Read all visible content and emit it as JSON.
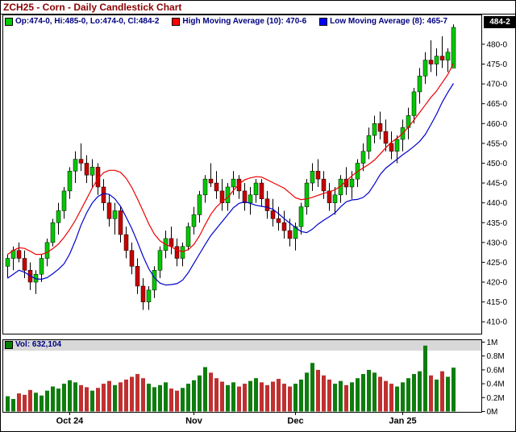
{
  "header": {
    "title": "ZCH25 - Corn - Daily Candlestick Chart"
  },
  "legend": {
    "ohlc": {
      "label": "Op:474-0, Hi:485-0, Lo:474-0, Cl:484-2",
      "swatch": "#00cc00"
    },
    "high_ma": {
      "label": "High Moving Average (10): 470-6",
      "swatch": "#ff0000"
    },
    "low_ma": {
      "label": "Low Moving Average (8): 465-7",
      "swatch": "#0000ff"
    },
    "last_price_badge": "484-2"
  },
  "volume_legend": {
    "label": "Vol: 632,104",
    "swatch": "#008000"
  },
  "chart_data": {
    "type": "candlestick",
    "title": "ZCH25 - Corn - Daily Candlestick Chart",
    "symbol": "ZCH25",
    "timeframe": "Daily",
    "legend_position": "top",
    "grid": false,
    "price_axis_side": "right",
    "ma_high_period": 10,
    "ma_low_period": 8,
    "ma_high_current": "470-6",
    "ma_low_current": "465-7",
    "last_close_label": "484-2",
    "last_volume": 632104,
    "price_ticks": [
      {
        "value": 480,
        "label": "480-0"
      },
      {
        "value": 475,
        "label": "475-0"
      },
      {
        "value": 470,
        "label": "470-0"
      },
      {
        "value": 465,
        "label": "465-0"
      },
      {
        "value": 460,
        "label": "460-0"
      },
      {
        "value": 455,
        "label": "455-0"
      },
      {
        "value": 450,
        "label": "450-0"
      },
      {
        "value": 445,
        "label": "445-0"
      },
      {
        "value": 440,
        "label": "440-0"
      },
      {
        "value": 435,
        "label": "435-0"
      },
      {
        "value": 430,
        "label": "430-0"
      },
      {
        "value": 425,
        "label": "425-0"
      },
      {
        "value": 420,
        "label": "420-0"
      },
      {
        "value": 415,
        "label": "415-0"
      },
      {
        "value": 410,
        "label": "410-0"
      }
    ],
    "volume_ticks": [
      {
        "value": 1000000,
        "label": "1M"
      },
      {
        "value": 800000,
        "label": "0.8M"
      },
      {
        "value": 600000,
        "label": "0.6M"
      },
      {
        "value": 400000,
        "label": "0.4M"
      },
      {
        "value": 200000,
        "label": "0.2M"
      },
      {
        "value": 0,
        "label": "0M"
      }
    ],
    "x_labels": [
      {
        "label": "Oct 24",
        "index": 11
      },
      {
        "label": "Nov",
        "index": 33
      },
      {
        "label": "Dec",
        "index": 51
      },
      {
        "label": "Jan 25",
        "index": 70
      }
    ],
    "colors": {
      "up": "#00c800",
      "down": "#c80000",
      "ma_high": "#ee0000",
      "ma_low": "#0000cc",
      "vol_up": "#0e7d0e",
      "vol_down": "#c03030",
      "volume_band": "#d8d8d8",
      "axis_text": "#000000"
    },
    "candles": [
      [
        424,
        427,
        421,
        426,
        220000
      ],
      [
        426,
        429,
        423,
        428,
        180000
      ],
      [
        428,
        430,
        425,
        426,
        260000
      ],
      [
        426,
        428,
        421,
        423,
        240000
      ],
      [
        423,
        425,
        418,
        420,
        310000
      ],
      [
        420,
        423,
        417,
        422,
        270000
      ],
      [
        422,
        427,
        420,
        426,
        230000
      ],
      [
        426,
        431,
        424,
        430,
        300000
      ],
      [
        430,
        436,
        429,
        435,
        360000
      ],
      [
        435,
        440,
        432,
        438,
        330000
      ],
      [
        438,
        444,
        436,
        443,
        400000
      ],
      [
        443,
        449,
        441,
        448,
        450000
      ],
      [
        448,
        453,
        445,
        451,
        420000
      ],
      [
        451,
        455,
        448,
        450,
        380000
      ],
      [
        450,
        452,
        445,
        447,
        350000
      ],
      [
        447,
        451,
        444,
        449,
        300000
      ],
      [
        449,
        450,
        442,
        444,
        340000
      ],
      [
        444,
        446,
        438,
        440,
        400000
      ],
      [
        440,
        442,
        434,
        436,
        440000
      ],
      [
        436,
        440,
        432,
        438,
        380000
      ],
      [
        438,
        439,
        430,
        432,
        420000
      ],
      [
        432,
        434,
        426,
        428,
        460000
      ],
      [
        428,
        430,
        422,
        424,
        500000
      ],
      [
        424,
        426,
        417,
        419,
        540000
      ],
      [
        419,
        421,
        413,
        415,
        480000
      ],
      [
        415,
        419,
        413,
        418,
        400000
      ],
      [
        418,
        424,
        416,
        423,
        350000
      ],
      [
        423,
        429,
        421,
        428,
        380000
      ],
      [
        428,
        433,
        426,
        431,
        420000
      ],
      [
        431,
        434,
        427,
        429,
        330000
      ],
      [
        429,
        431,
        424,
        426,
        300000
      ],
      [
        426,
        430,
        424,
        429,
        340000
      ],
      [
        429,
        435,
        428,
        434,
        400000
      ],
      [
        434,
        439,
        432,
        437,
        450000
      ],
      [
        437,
        443,
        435,
        442,
        520000
      ],
      [
        442,
        447,
        440,
        446,
        640000
      ],
      [
        446,
        450,
        444,
        445,
        560000
      ],
      [
        445,
        448,
        441,
        443,
        480000
      ],
      [
        443,
        446,
        438,
        440,
        430000
      ],
      [
        440,
        445,
        438,
        444,
        380000
      ],
      [
        444,
        448,
        442,
        446,
        420000
      ],
      [
        446,
        447,
        441,
        443,
        360000
      ],
      [
        443,
        445,
        438,
        440,
        400000
      ],
      [
        440,
        444,
        437,
        442,
        440000
      ],
      [
        442,
        446,
        440,
        445,
        480000
      ],
      [
        445,
        446,
        439,
        441,
        420000
      ],
      [
        441,
        443,
        436,
        438,
        380000
      ],
      [
        438,
        441,
        434,
        436,
        430000
      ],
      [
        436,
        439,
        433,
        435,
        470000
      ],
      [
        435,
        438,
        431,
        433,
        400000
      ],
      [
        433,
        436,
        429,
        431,
        360000
      ],
      [
        431,
        435,
        428,
        434,
        400000
      ],
      [
        434,
        440,
        432,
        439,
        460000
      ],
      [
        439,
        446,
        437,
        445,
        560000
      ],
      [
        445,
        450,
        443,
        448,
        700000
      ],
      [
        448,
        451,
        444,
        446,
        600000
      ],
      [
        446,
        448,
        441,
        443,
        520000
      ],
      [
        443,
        445,
        438,
        440,
        460000
      ],
      [
        440,
        444,
        437,
        442,
        400000
      ],
      [
        442,
        447,
        440,
        446,
        440000
      ],
      [
        446,
        449,
        442,
        444,
        380000
      ],
      [
        444,
        448,
        441,
        446,
        420000
      ],
      [
        446,
        451,
        444,
        450,
        480000
      ],
      [
        450,
        455,
        448,
        453,
        540000
      ],
      [
        453,
        459,
        451,
        457,
        600000
      ],
      [
        457,
        462,
        455,
        460,
        560000
      ],
      [
        460,
        463,
        456,
        458,
        500000
      ],
      [
        458,
        461,
        453,
        455,
        440000
      ],
      [
        455,
        458,
        451,
        453,
        400000
      ],
      [
        453,
        457,
        450,
        456,
        360000
      ],
      [
        456,
        461,
        453,
        459,
        420000
      ],
      [
        459,
        464,
        456,
        462,
        480000
      ],
      [
        462,
        469,
        460,
        468,
        540000
      ],
      [
        468,
        474,
        465,
        472,
        580000
      ],
      [
        472,
        478,
        470,
        476,
        950000
      ],
      [
        476,
        481,
        473,
        475,
        520000
      ],
      [
        475,
        479,
        472,
        477,
        460000
      ],
      [
        477,
        482,
        474,
        476,
        580000
      ],
      [
        476,
        479,
        473,
        478,
        500000
      ],
      [
        474,
        485,
        474,
        484.25,
        632104
      ]
    ]
  }
}
